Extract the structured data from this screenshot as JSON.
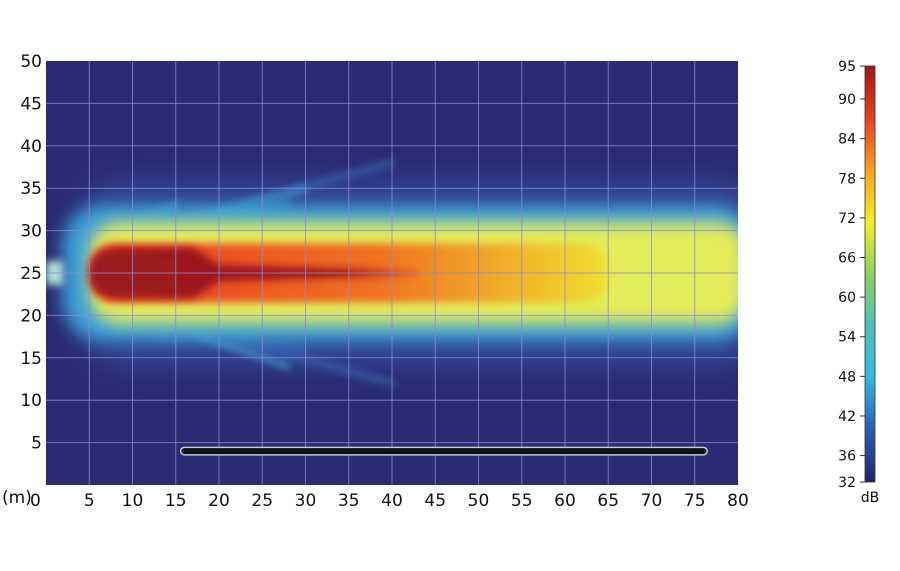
{
  "chart_data": {
    "type": "heatmap",
    "title": "",
    "x_unit_label": "(m)",
    "x_ticks": [
      0,
      5,
      10,
      15,
      20,
      25,
      30,
      35,
      40,
      45,
      50,
      55,
      60,
      65,
      70,
      75,
      80
    ],
    "y_ticks": [
      5,
      10,
      15,
      20,
      25,
      30,
      35,
      40,
      45,
      50
    ],
    "xlim": [
      0,
      80
    ],
    "ylim": [
      0,
      50
    ],
    "grid": true,
    "colorbar": {
      "label": "dB",
      "range": [
        32,
        95
      ],
      "ticks": [
        32,
        36,
        42,
        48,
        54,
        60,
        66,
        72,
        78,
        84,
        90,
        95
      ],
      "colormap": [
        "#23236e",
        "#2a5db0",
        "#32b8e0",
        "#4fc0b8",
        "#8fd060",
        "#f4f020",
        "#f8a020",
        "#e84020",
        "#a01818"
      ],
      "placement": "right"
    },
    "field": {
      "source_position": [
        1,
        25
      ],
      "core_above_90dB": {
        "x": [
          5,
          43
        ],
        "y": [
          22,
          28
        ]
      },
      "orange_80_90dB": {
        "x": [
          5,
          65
        ],
        "y": [
          21.5,
          28.5
        ]
      },
      "yellow_70_80dB": {
        "x": [
          5,
          80
        ],
        "y": [
          19,
          31
        ]
      },
      "background_dB": 32
    },
    "barrier": {
      "x": [
        16,
        76
      ],
      "y": 4
    }
  },
  "colors": {
    "background": "#2a2b72",
    "grid": "#8a8ad8",
    "barrier": "#111111"
  }
}
